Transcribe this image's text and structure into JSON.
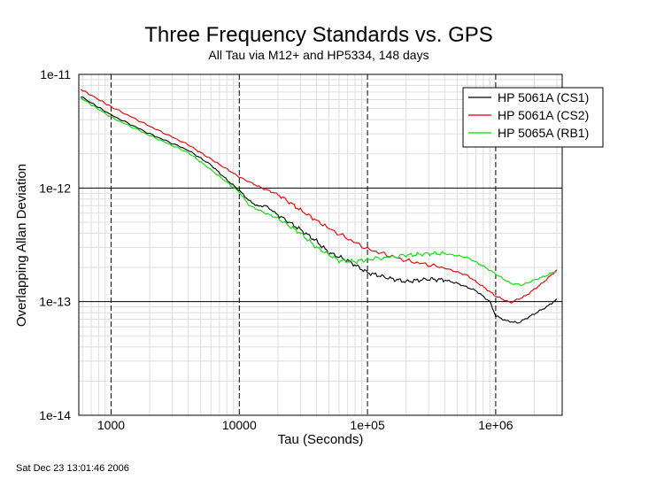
{
  "chart_data": {
    "type": "line",
    "title": "Three Frequency Standards vs. GPS",
    "subtitle": "All Tau via M12+ and HP5334, 148 days",
    "xlabel": "Tau (Seconds)",
    "ylabel": "Overlapping Allan Deviation",
    "xscale": "log",
    "yscale": "log",
    "xlim": [
      560,
      3300000
    ],
    "ylim": [
      1e-14,
      1e-11
    ],
    "x_ticks": [
      {
        "value": 1000,
        "label": "1000"
      },
      {
        "value": 10000,
        "label": "10000"
      },
      {
        "value": 100000,
        "label": "1e+05"
      },
      {
        "value": 1000000,
        "label": "1e+06"
      }
    ],
    "y_ticks": [
      {
        "value": 1e-14,
        "label": "1e-14"
      },
      {
        "value": 1e-13,
        "label": "1e-13"
      },
      {
        "value": 1e-12,
        "label": "1e-12"
      },
      {
        "value": 1e-11,
        "label": "1e-11"
      }
    ],
    "grid": true,
    "legend_position": "top-right",
    "series": [
      {
        "name": "HP 5061A (CS1)",
        "color": "#000000",
        "points": [
          [
            580,
            6.4e-12
          ],
          [
            1000,
            4.4e-12
          ],
          [
            2000,
            3e-12
          ],
          [
            4000,
            2.15e-12
          ],
          [
            6000,
            1.6e-12
          ],
          [
            8000,
            1.18e-12
          ],
          [
            10000,
            9.5e-13
          ],
          [
            12000,
            7.7e-13
          ],
          [
            14000,
            6.9e-13
          ],
          [
            16000,
            7e-13
          ],
          [
            20000,
            5.8e-13
          ],
          [
            30000,
            4.3e-13
          ],
          [
            40000,
            3.4e-13
          ],
          [
            50000,
            2.7e-13
          ],
          [
            70000,
            2.3e-13
          ],
          [
            100000,
            1.8e-13
          ],
          [
            150000,
            1.6e-13
          ],
          [
            200000,
            1.5e-13
          ],
          [
            300000,
            1.58e-13
          ],
          [
            400000,
            1.55e-13
          ],
          [
            500000,
            1.45e-13
          ],
          [
            700000,
            1.25e-13
          ],
          [
            900000,
            1e-13
          ],
          [
            1000000,
            7.5e-14
          ],
          [
            1200000,
            6.8e-14
          ],
          [
            1500000,
            6.5e-14
          ],
          [
            2000000,
            7.8e-14
          ],
          [
            2500000,
            9e-14
          ],
          [
            3000000,
            1.05e-13
          ]
        ]
      },
      {
        "name": "HP 5061A (CS2)",
        "color": "#dd0000",
        "points": [
          [
            580,
            7.4e-12
          ],
          [
            1000,
            5.2e-12
          ],
          [
            2000,
            3.5e-12
          ],
          [
            4000,
            2.4e-12
          ],
          [
            6000,
            1.8e-12
          ],
          [
            10000,
            1.25e-12
          ],
          [
            15000,
            1e-12
          ],
          [
            20000,
            8.8e-13
          ],
          [
            30000,
            6.4e-13
          ],
          [
            50000,
            4.4e-13
          ],
          [
            100000,
            2.9e-13
          ],
          [
            200000,
            2.3e-13
          ],
          [
            400000,
            1.98e-13
          ],
          [
            600000,
            1.7e-13
          ],
          [
            800000,
            1.35e-13
          ],
          [
            1000000,
            1.12e-13
          ],
          [
            1300000,
            9.8e-14
          ],
          [
            1700000,
            1.12e-13
          ],
          [
            2300000,
            1.45e-13
          ],
          [
            3000000,
            1.9e-13
          ]
        ]
      },
      {
        "name": "HP 5065A (RB1)",
        "color": "#00dd00",
        "points": [
          [
            580,
            6.2e-12
          ],
          [
            1000,
            4.2e-12
          ],
          [
            2000,
            2.9e-12
          ],
          [
            4000,
            2.05e-12
          ],
          [
            6000,
            1.45e-12
          ],
          [
            10000,
            9.2e-13
          ],
          [
            12000,
            7e-13
          ],
          [
            16000,
            6e-13
          ],
          [
            20000,
            5.4e-13
          ],
          [
            30000,
            4e-13
          ],
          [
            40000,
            3e-13
          ],
          [
            60000,
            2.3e-13
          ],
          [
            80000,
            2.25e-13
          ],
          [
            100000,
            2.35e-13
          ],
          [
            200000,
            2.55e-13
          ],
          [
            300000,
            2.65e-13
          ],
          [
            400000,
            2.65e-13
          ],
          [
            600000,
            2.45e-13
          ],
          [
            800000,
            2.05e-13
          ],
          [
            1000000,
            1.75e-13
          ],
          [
            1300000,
            1.45e-13
          ],
          [
            1600000,
            1.4e-13
          ],
          [
            2000000,
            1.55e-13
          ],
          [
            2500000,
            1.7e-13
          ],
          [
            3000000,
            1.88e-13
          ]
        ]
      }
    ],
    "footer": "Sat Dec 23 13:01:46 2006"
  }
}
